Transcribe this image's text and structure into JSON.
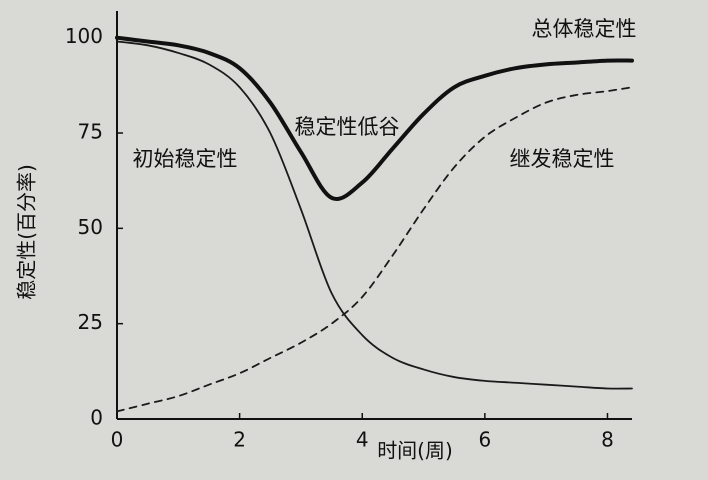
{
  "chart_data": {
    "type": "line",
    "x_label": "时间(周)",
    "y_label": "稳定性(百分率)",
    "x": [
      0,
      0.5,
      1,
      1.5,
      2,
      2.5,
      3,
      3.5,
      4,
      4.5,
      5,
      5.5,
      6,
      6.5,
      7,
      7.5,
      8,
      8.4
    ],
    "series": [
      {
        "name": "初始稳定性",
        "color": "#1a1a1a",
        "linestyle": "solid",
        "linewidth": 1.8,
        "values": [
          99,
          98,
          96,
          93,
          87,
          75,
          55,
          33,
          22,
          16,
          13,
          11,
          10,
          9.5,
          9,
          8.5,
          8,
          8
        ]
      },
      {
        "name": "继发稳定性",
        "color": "#1a1a1a",
        "linestyle": "dashed",
        "linewidth": 1.8,
        "values": [
          2,
          4,
          6,
          9,
          12,
          16,
          20,
          25,
          32,
          43,
          55,
          66,
          74,
          79,
          83,
          85,
          86,
          87
        ]
      },
      {
        "name": "总体稳定性",
        "color": "#111111",
        "linestyle": "solid",
        "linewidth": 4,
        "values": [
          100,
          99,
          98,
          96,
          92,
          83,
          70,
          58,
          62,
          71,
          80,
          87,
          90,
          92,
          93,
          93.5,
          94,
          94
        ]
      }
    ],
    "annotations": [
      "稳定性低谷"
    ],
    "xlim": [
      0,
      8.4
    ],
    "ylim": [
      0,
      107
    ],
    "xticks": [
      0,
      2,
      4,
      6,
      8
    ],
    "yticks": [
      0,
      25,
      50,
      75,
      100
    ],
    "grid": false
  }
}
